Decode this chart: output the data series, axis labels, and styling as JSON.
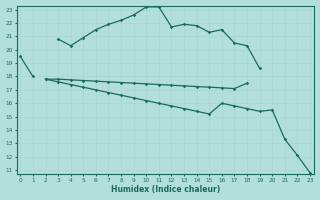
{
  "xlabel": "Humidex (Indice chaleur)",
  "x_values": [
    0,
    1,
    2,
    3,
    4,
    5,
    6,
    7,
    8,
    9,
    10,
    11,
    12,
    13,
    14,
    15,
    16,
    17,
    18,
    19,
    20,
    21,
    22,
    23
  ],
  "y1": [
    19.5,
    18.0,
    null,
    20.8,
    20.3,
    20.9,
    21.5,
    21.9,
    22.2,
    22.6,
    23.2,
    23.2,
    21.7,
    21.9,
    21.8,
    21.3,
    21.5,
    20.5,
    20.3,
    18.6,
    null,
    null,
    null,
    null
  ],
  "y2": [
    null,
    null,
    17.8,
    17.8,
    17.75,
    17.7,
    17.65,
    17.6,
    17.55,
    17.5,
    17.45,
    17.4,
    17.35,
    17.3,
    17.25,
    17.2,
    17.15,
    17.1,
    17.5,
    null,
    null,
    null,
    null,
    null
  ],
  "y3": [
    null,
    null,
    17.8,
    17.6,
    17.4,
    17.2,
    17.0,
    16.8,
    16.6,
    16.4,
    16.2,
    16.0,
    15.8,
    15.6,
    15.4,
    15.2,
    16.0,
    15.8,
    15.6,
    15.4,
    15.5,
    13.3,
    12.1,
    10.8
  ],
  "bg_color": "#b2dfdb",
  "line_color": "#1a6b5e",
  "grid_color": "#c8e8e5",
  "ylim": [
    11,
    23
  ],
  "yticks": [
    11,
    12,
    13,
    14,
    15,
    16,
    17,
    18,
    19,
    20,
    21,
    22,
    23
  ],
  "xlim": [
    -0.5,
    23.5
  ],
  "xticks": [
    0,
    1,
    2,
    3,
    4,
    5,
    6,
    7,
    8,
    9,
    10,
    11,
    12,
    13,
    14,
    15,
    16,
    17,
    18,
    19,
    20,
    21,
    22,
    23
  ]
}
